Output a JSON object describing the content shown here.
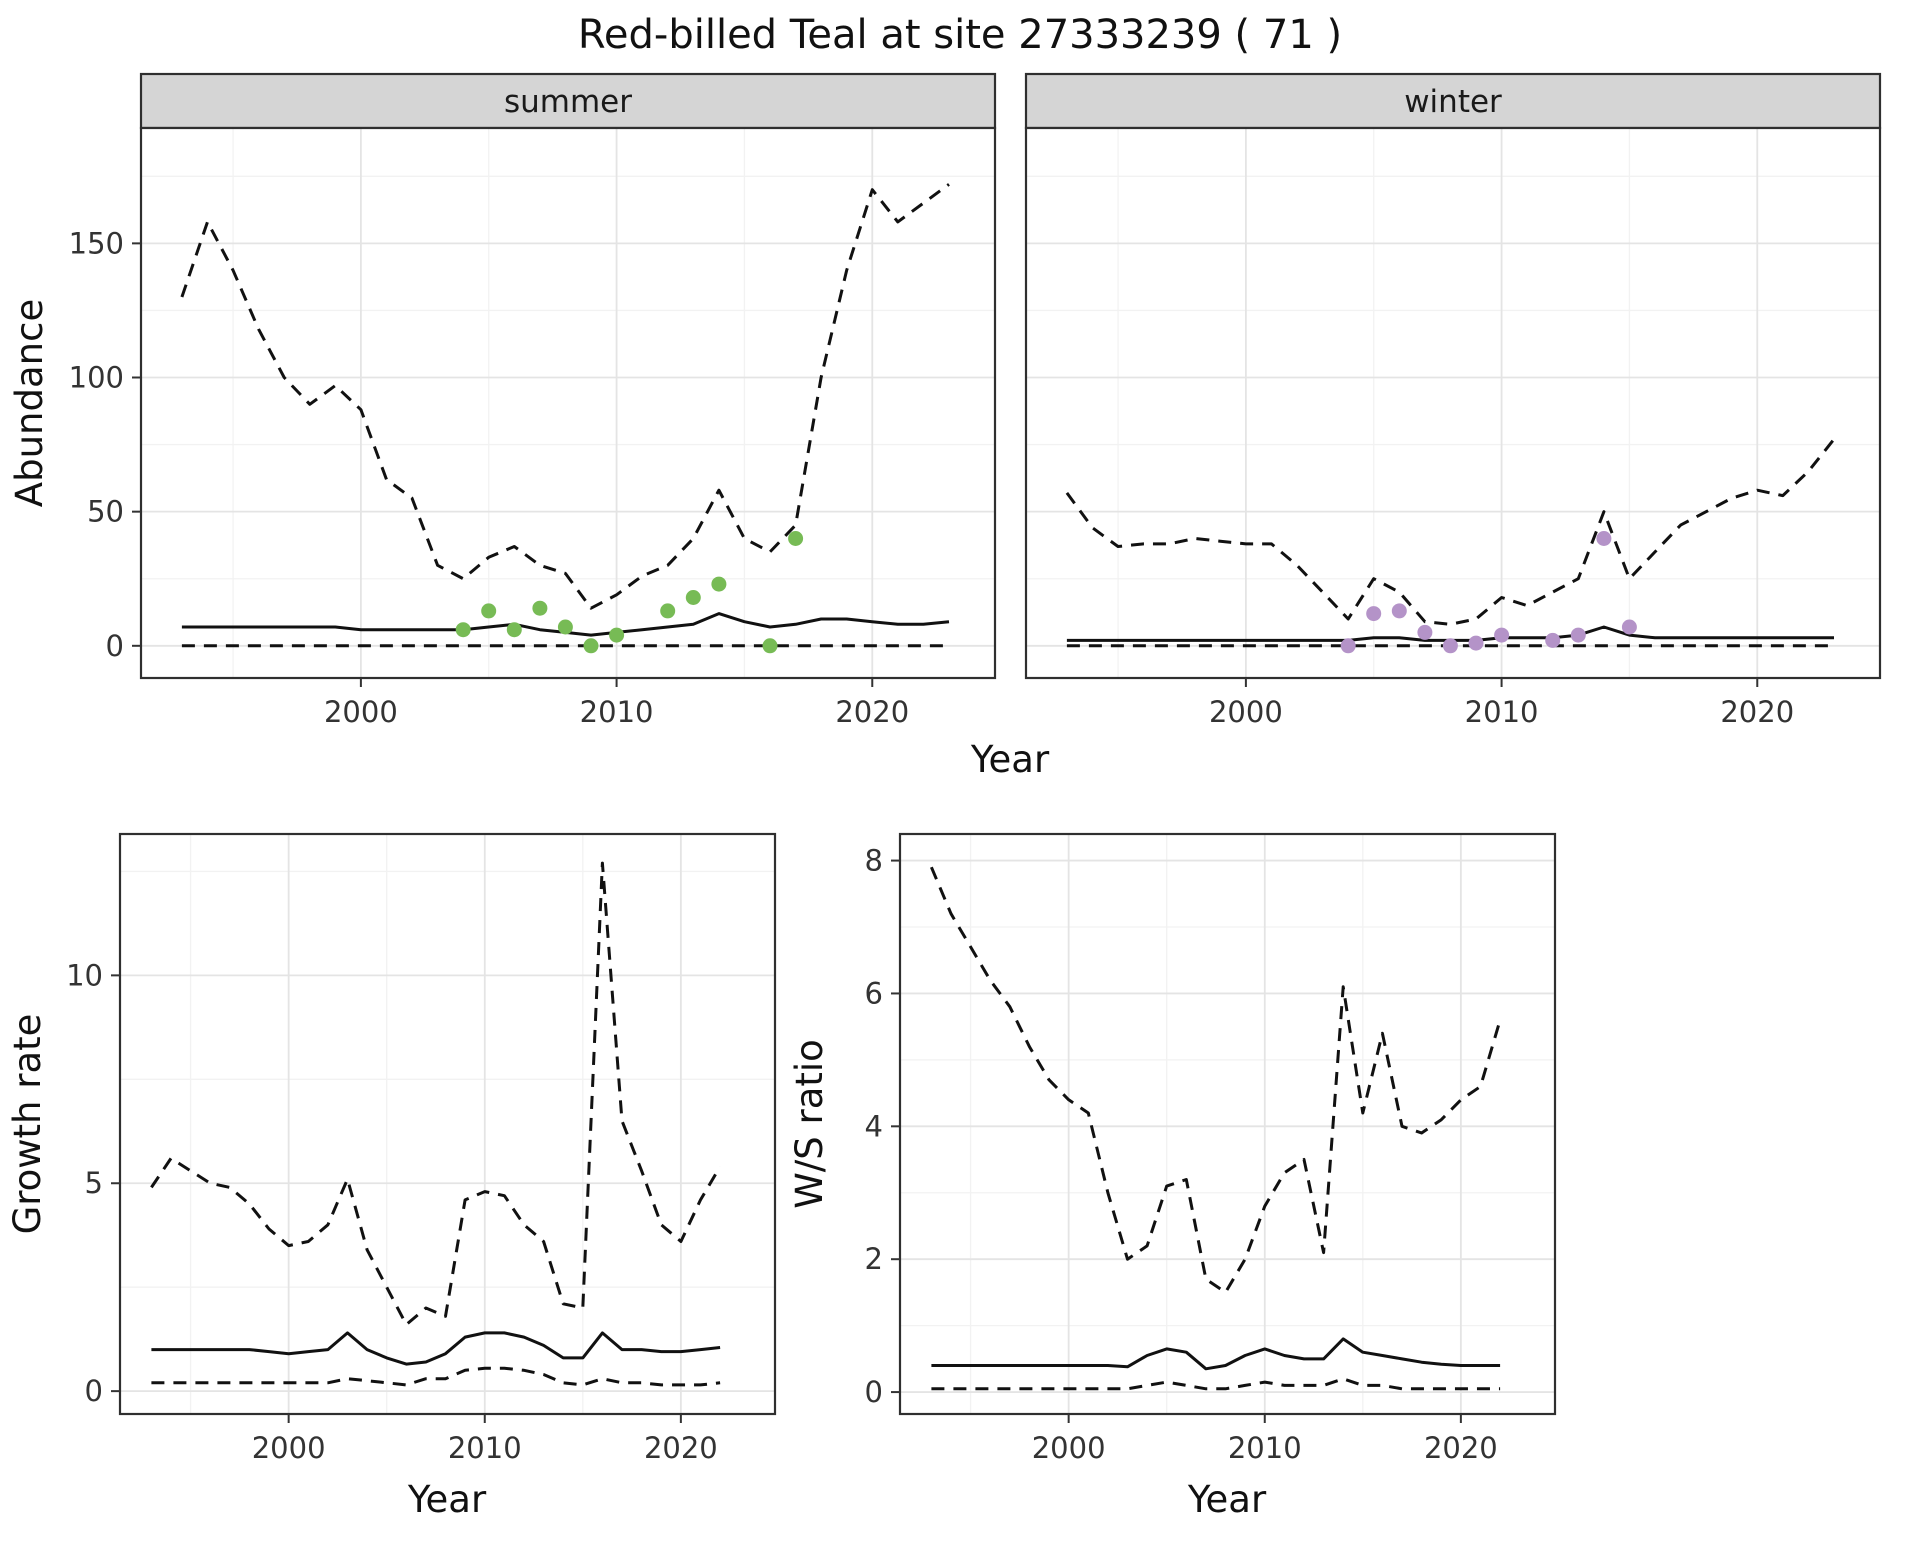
{
  "title": "Red-billed Teal at site 27333239 ( 71 )",
  "facets": [
    "summer",
    "winter"
  ],
  "style": {
    "strip_bg": "#d5d5d5",
    "panel_bg": "#ffffff",
    "panel_border": "#2f2f2f",
    "grid_major": "#e4e4e4",
    "grid_minor": "#f2f2f2",
    "line_color": "#111111",
    "tick_color": "#333333",
    "summer_point_color": "#77bb55",
    "winter_point_color": "#b493c8"
  },
  "chart_data": [
    {
      "id": "abundance-summer",
      "type": "line",
      "facet": "summer",
      "xlabel": "Year",
      "ylabel": "Abundance",
      "xlim": [
        1991.4,
        2024.8
      ],
      "ylim": [
        -12,
        193
      ],
      "xticks": [
        2000,
        2010,
        2020
      ],
      "yticks": [
        0,
        50,
        100,
        150
      ],
      "x": [
        1993,
        1994,
        1995,
        1996,
        1997,
        1998,
        1999,
        2000,
        2001,
        2002,
        2003,
        2004,
        2005,
        2006,
        2007,
        2008,
        2009,
        2010,
        2011,
        2012,
        2013,
        2014,
        2015,
        2016,
        2017,
        2018,
        2019,
        2020,
        2021,
        2022,
        2023
      ],
      "series": [
        {
          "name": "upper-credible",
          "style": "dashed",
          "values": [
            130,
            158,
            140,
            118,
            100,
            90,
            97,
            88,
            62,
            55,
            30,
            25,
            33,
            37,
            30,
            27,
            14,
            19,
            26,
            30,
            40,
            58,
            40,
            35,
            45,
            100,
            140,
            170,
            158,
            165,
            172
          ]
        },
        {
          "name": "estimate",
          "style": "solid",
          "values": [
            7,
            7,
            7,
            7,
            7,
            7,
            7,
            6,
            6,
            6,
            6,
            6,
            7,
            8,
            6,
            5,
            4,
            5,
            6,
            7,
            8,
            12,
            9,
            7,
            8,
            10,
            10,
            9,
            8,
            8,
            9
          ]
        },
        {
          "name": "lower-credible",
          "style": "dashed",
          "values": [
            0,
            0,
            0,
            0,
            0,
            0,
            0,
            0,
            0,
            0,
            0,
            0,
            0,
            0,
            0,
            0,
            0,
            0,
            0,
            0,
            0,
            0,
            0,
            0,
            0,
            0,
            0,
            0,
            0,
            0,
            0
          ]
        }
      ],
      "points": {
        "name": "observed-count",
        "color": "#77bb55",
        "xy": [
          [
            2004,
            6
          ],
          [
            2005,
            13
          ],
          [
            2006,
            6
          ],
          [
            2007,
            14
          ],
          [
            2008,
            7
          ],
          [
            2009,
            0
          ],
          [
            2010,
            4
          ],
          [
            2012,
            13
          ],
          [
            2013,
            18
          ],
          [
            2014,
            23
          ],
          [
            2016,
            0
          ],
          [
            2017,
            40
          ]
        ]
      }
    },
    {
      "id": "abundance-winter",
      "type": "line",
      "facet": "winter",
      "xlabel": "Year",
      "ylabel": "Abundance",
      "xlim": [
        1991.4,
        2024.8
      ],
      "ylim": [
        -12,
        193
      ],
      "xticks": [
        2000,
        2010,
        2020
      ],
      "yticks": [
        0,
        50,
        100,
        150
      ],
      "x": [
        1993,
        1994,
        1995,
        1996,
        1997,
        1998,
        1999,
        2000,
        2001,
        2002,
        2003,
        2004,
        2005,
        2006,
        2007,
        2008,
        2009,
        2010,
        2011,
        2012,
        2013,
        2014,
        2015,
        2016,
        2017,
        2018,
        2019,
        2020,
        2021,
        2022,
        2023
      ],
      "series": [
        {
          "name": "upper-credible",
          "style": "dashed",
          "values": [
            57,
            44,
            37,
            38,
            38,
            40,
            39,
            38,
            38,
            30,
            20,
            10,
            25,
            20,
            9,
            8,
            10,
            18,
            15,
            20,
            25,
            50,
            25,
            35,
            45,
            50,
            55,
            58,
            56,
            65,
            77
          ]
        },
        {
          "name": "estimate",
          "style": "solid",
          "values": [
            2,
            2,
            2,
            2,
            2,
            2,
            2,
            2,
            2,
            2,
            2,
            2,
            3,
            3,
            2,
            2,
            2,
            3,
            3,
            3,
            4,
            7,
            4,
            3,
            3,
            3,
            3,
            3,
            3,
            3,
            3
          ]
        },
        {
          "name": "lower-credible",
          "style": "dashed",
          "values": [
            0,
            0,
            0,
            0,
            0,
            0,
            0,
            0,
            0,
            0,
            0,
            0,
            0,
            0,
            0,
            0,
            0,
            0,
            0,
            0,
            0,
            0,
            0,
            0,
            0,
            0,
            0,
            0,
            0,
            0,
            0
          ]
        }
      ],
      "points": {
        "name": "observed-count",
        "color": "#b493c8",
        "xy": [
          [
            2004,
            0
          ],
          [
            2005,
            12
          ],
          [
            2006,
            13
          ],
          [
            2007,
            5
          ],
          [
            2008,
            0
          ],
          [
            2009,
            1
          ],
          [
            2010,
            4
          ],
          [
            2012,
            2
          ],
          [
            2013,
            4
          ],
          [
            2014,
            40
          ],
          [
            2015,
            7
          ]
        ]
      }
    },
    {
      "id": "growth-rate",
      "type": "line",
      "facet": "",
      "xlabel": "Year",
      "ylabel": "Growth rate",
      "xlim": [
        1991.4,
        2024.8
      ],
      "ylim": [
        -0.55,
        13.4
      ],
      "xticks": [
        2000,
        2010,
        2020
      ],
      "yticks": [
        0,
        5,
        10
      ],
      "x": [
        1993,
        1994,
        1995,
        1996,
        1997,
        1998,
        1999,
        2000,
        2001,
        2002,
        2003,
        2004,
        2005,
        2006,
        2007,
        2008,
        2009,
        2010,
        2011,
        2012,
        2013,
        2014,
        2015,
        2016,
        2017,
        2018,
        2019,
        2020,
        2021,
        2022
      ],
      "series": [
        {
          "name": "upper-credible",
          "style": "dashed",
          "values": [
            4.9,
            5.6,
            5.3,
            5.0,
            4.9,
            4.5,
            3.9,
            3.5,
            3.6,
            4.0,
            5.1,
            3.4,
            2.5,
            1.6,
            2.0,
            1.8,
            4.6,
            4.8,
            4.7,
            4.0,
            3.6,
            2.1,
            2.0,
            12.7,
            6.5,
            5.3,
            4.0,
            3.6,
            4.6,
            5.4
          ]
        },
        {
          "name": "estimate",
          "style": "solid",
          "values": [
            1.0,
            1.0,
            1.0,
            1.0,
            1.0,
            1.0,
            0.95,
            0.9,
            0.95,
            1.0,
            1.4,
            1.0,
            0.8,
            0.65,
            0.7,
            0.9,
            1.3,
            1.4,
            1.4,
            1.3,
            1.1,
            0.8,
            0.8,
            1.4,
            1.0,
            1.0,
            0.95,
            0.95,
            1.0,
            1.05
          ]
        },
        {
          "name": "lower-credible",
          "style": "dashed",
          "values": [
            0.2,
            0.2,
            0.2,
            0.2,
            0.2,
            0.2,
            0.2,
            0.2,
            0.2,
            0.2,
            0.3,
            0.25,
            0.2,
            0.15,
            0.3,
            0.3,
            0.5,
            0.55,
            0.55,
            0.5,
            0.4,
            0.2,
            0.15,
            0.3,
            0.2,
            0.2,
            0.15,
            0.15,
            0.15,
            0.2
          ]
        }
      ],
      "points": null
    },
    {
      "id": "ws-ratio",
      "type": "line",
      "facet": "",
      "xlabel": "Year",
      "ylabel": "W/S ratio",
      "xlim": [
        1991.4,
        2024.8
      ],
      "ylim": [
        -0.33,
        8.4
      ],
      "xticks": [
        2000,
        2010,
        2020
      ],
      "yticks": [
        0,
        2,
        4,
        6,
        8
      ],
      "x": [
        1993,
        1994,
        1995,
        1996,
        1997,
        1998,
        1999,
        2000,
        2001,
        2002,
        2003,
        2004,
        2005,
        2006,
        2007,
        2008,
        2009,
        2010,
        2011,
        2012,
        2013,
        2014,
        2015,
        2016,
        2017,
        2018,
        2019,
        2020,
        2021,
        2022
      ],
      "series": [
        {
          "name": "upper-credible",
          "style": "dashed",
          "values": [
            7.9,
            7.2,
            6.7,
            6.2,
            5.8,
            5.2,
            4.7,
            4.4,
            4.2,
            3.0,
            2.0,
            2.2,
            3.1,
            3.2,
            1.7,
            1.5,
            2.0,
            2.8,
            3.3,
            3.5,
            2.1,
            6.1,
            4.2,
            5.4,
            4.0,
            3.9,
            4.1,
            4.4,
            4.6,
            5.6
          ]
        },
        {
          "name": "estimate",
          "style": "solid",
          "values": [
            0.4,
            0.4,
            0.4,
            0.4,
            0.4,
            0.4,
            0.4,
            0.4,
            0.4,
            0.4,
            0.38,
            0.55,
            0.65,
            0.6,
            0.35,
            0.4,
            0.55,
            0.65,
            0.55,
            0.5,
            0.5,
            0.8,
            0.6,
            0.55,
            0.5,
            0.45,
            0.42,
            0.4,
            0.4,
            0.4
          ]
        },
        {
          "name": "lower-credible",
          "style": "dashed",
          "values": [
            0.05,
            0.05,
            0.05,
            0.05,
            0.05,
            0.05,
            0.05,
            0.05,
            0.05,
            0.05,
            0.05,
            0.1,
            0.15,
            0.1,
            0.05,
            0.05,
            0.1,
            0.15,
            0.1,
            0.1,
            0.1,
            0.2,
            0.1,
            0.1,
            0.05,
            0.05,
            0.05,
            0.05,
            0.05,
            0.05
          ]
        }
      ],
      "points": null
    }
  ]
}
